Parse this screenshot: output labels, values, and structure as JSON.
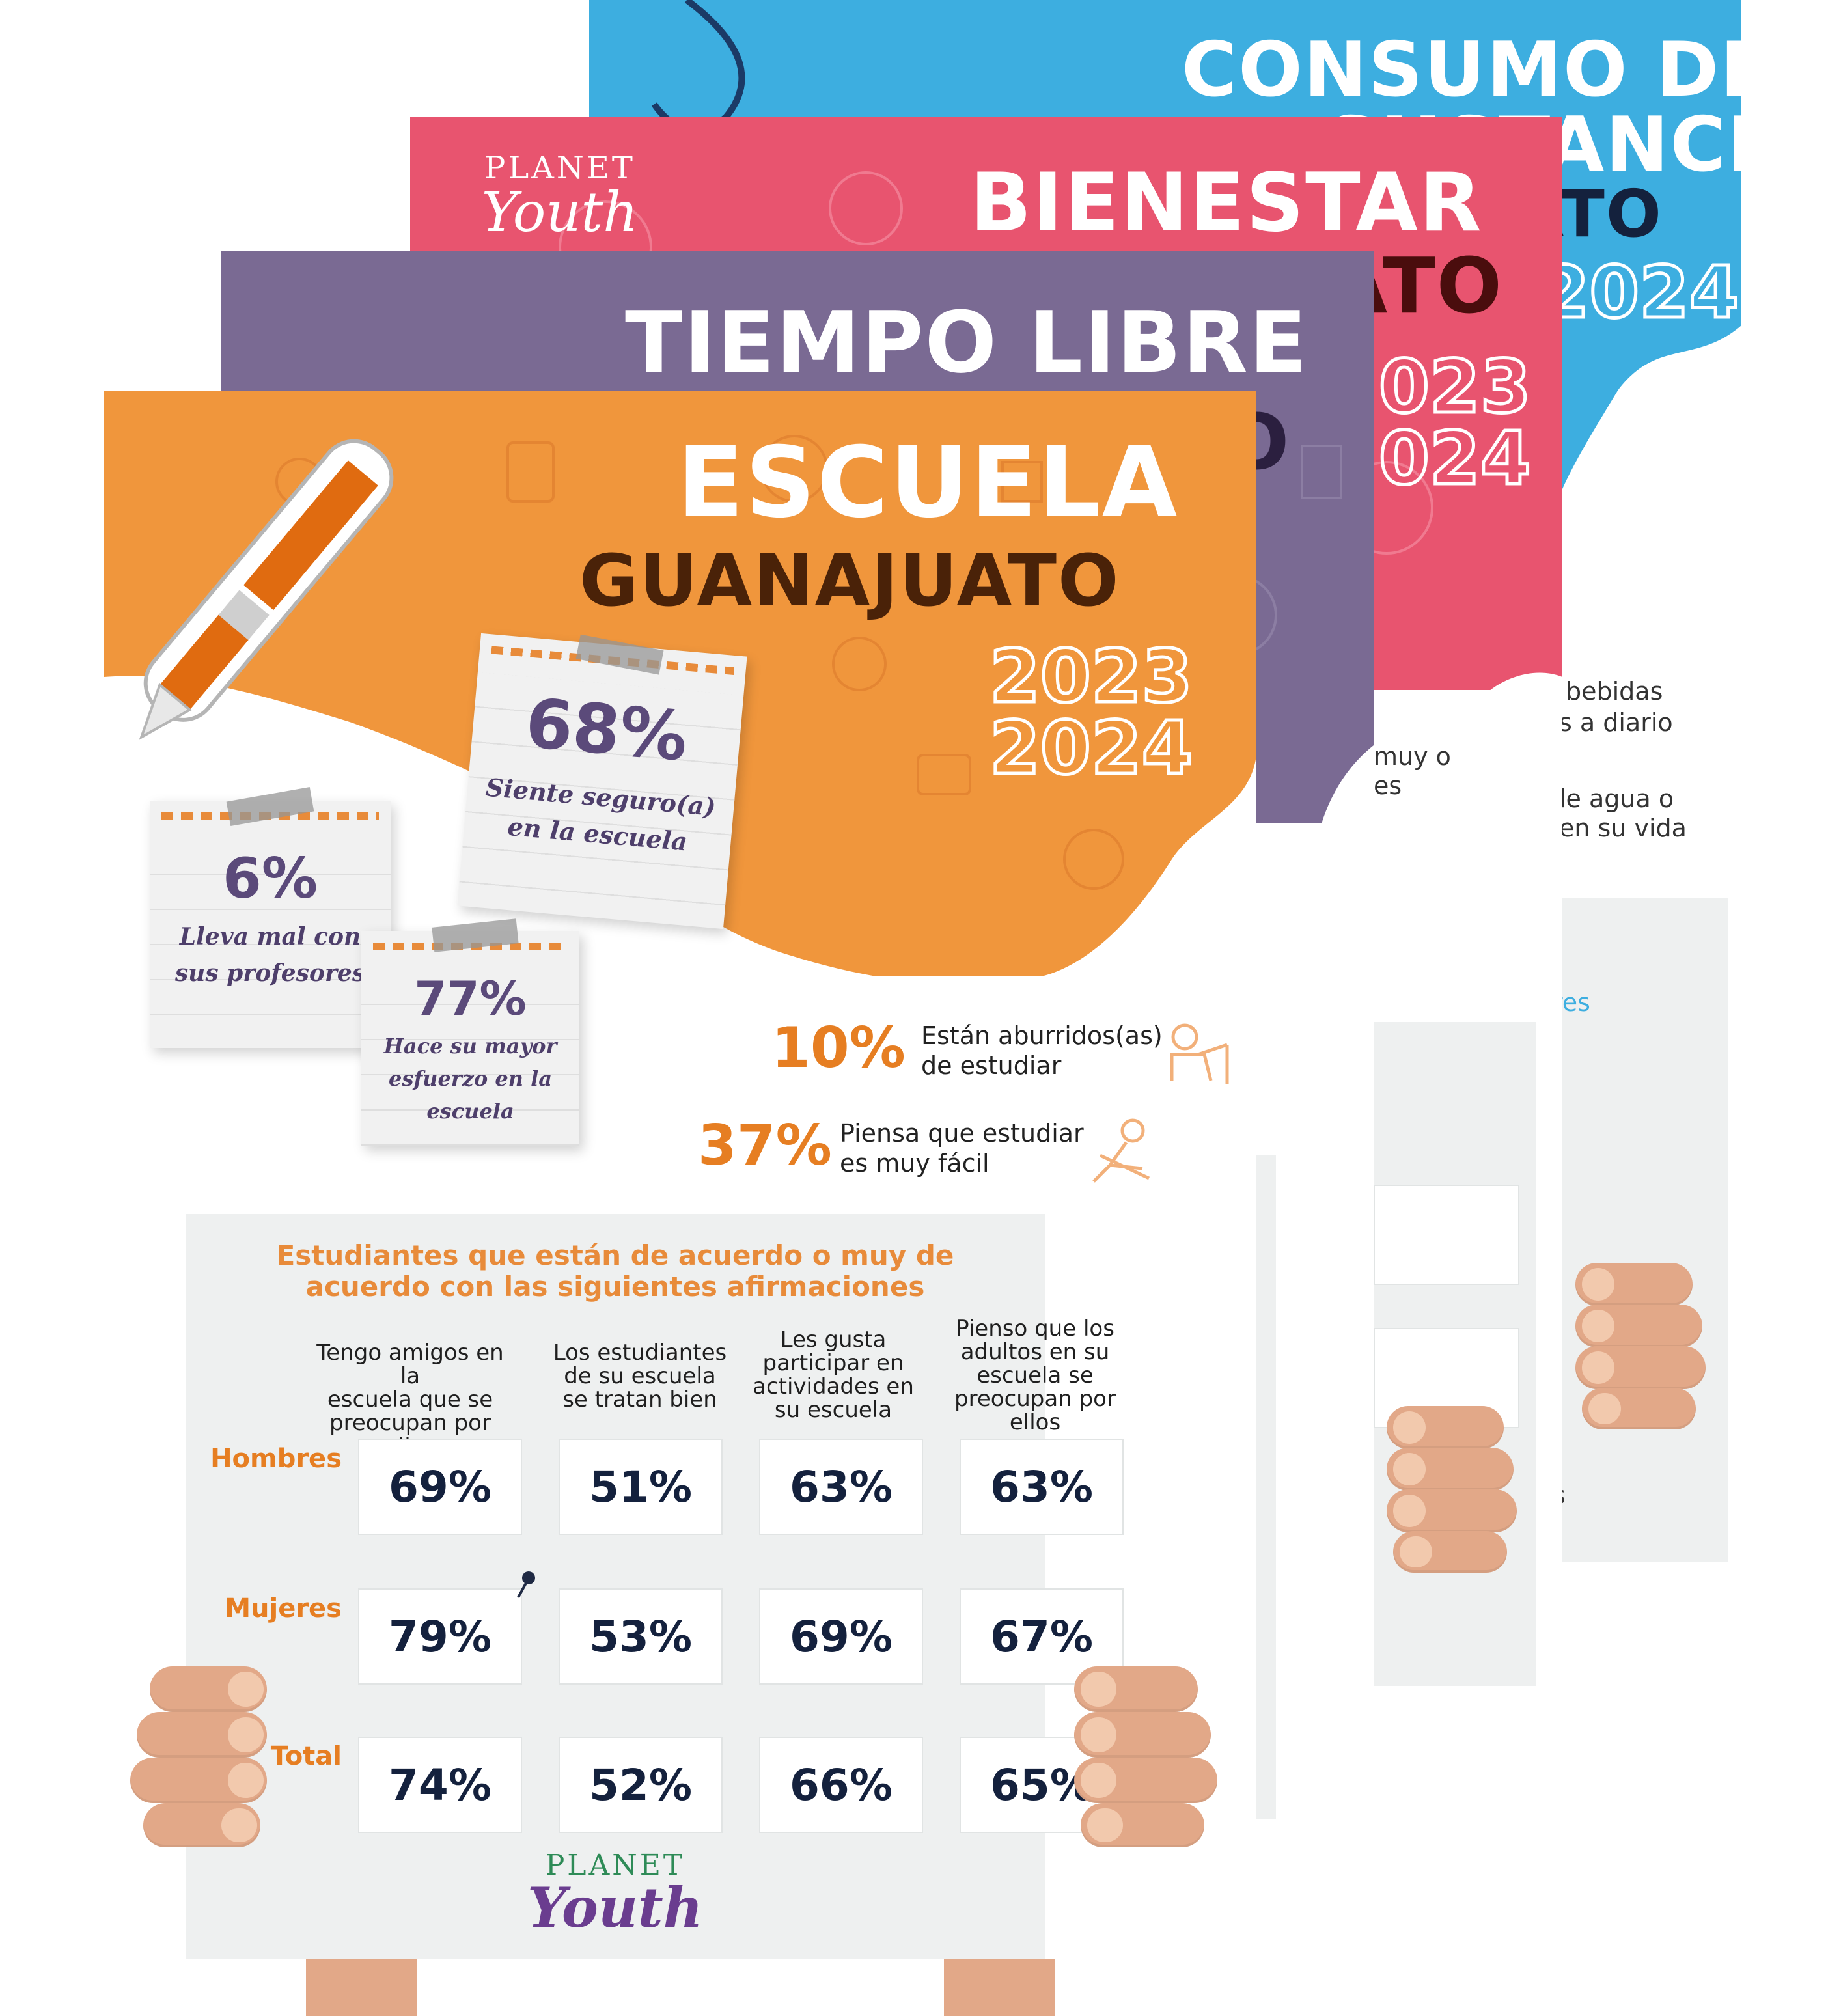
{
  "posters": {
    "consumo": {
      "title_line1": "CONSUMO DE",
      "title_line2": "SUSTANCIAS",
      "title_line3": "ATO",
      "year": "2024",
      "snippets": [
        "bebidas",
        "s a diario",
        "le agua o",
        "en su vida",
        "res",
        "a",
        "s"
      ]
    },
    "bienestar": {
      "brand_top": "PLANET",
      "brand_bottom": "Youth",
      "title": "BIENESTAR",
      "sub": "ATO",
      "year1": "2023",
      "year2": "2024",
      "snippets": [
        "muy o",
        "es"
      ]
    },
    "tiempo": {
      "title": "TIEMPO LIBRE",
      "sub": "O"
    },
    "escuela": {
      "title": "ESCUELA",
      "subtitle": "GUANAJUATO",
      "year1": "2023",
      "year2": "2024"
    }
  },
  "notes": [
    {
      "id": "seguro",
      "pct": "68%",
      "text_l1": "Siente seguro(a)",
      "text_l2": "en la escuela"
    },
    {
      "id": "profesores",
      "pct": "6%",
      "text_l1": "Lleva mal con",
      "text_l2": "sus profesores"
    },
    {
      "id": "esfuerzo",
      "pct": "77%",
      "text_l1": "Hace su mayor",
      "text_l2": "esfuerzo en la",
      "text_l3": "escuela"
    }
  ],
  "stats": [
    {
      "pct": "10%",
      "text_l1": "Están aburridos(as)",
      "text_l2": "de estudiar"
    },
    {
      "pct": "37%",
      "text_l1": "Piensa que estudiar",
      "text_l2": "es muy fácil"
    }
  ],
  "table": {
    "title_l1": "Estudiantes que están de acuerdo o muy de",
    "title_l2": "acuerdo con las siguientes afirmaciones",
    "columns": [
      [
        "Tengo amigos en la",
        "escuela que se",
        "preocupan por ellos"
      ],
      [
        "Los estudiantes",
        "de su escuela",
        "se tratan bien"
      ],
      [
        "Les gusta",
        "participar en",
        "actividades en",
        "su escuela"
      ],
      [
        "Pienso que los",
        "adultos en su",
        "escuela se",
        "preocupan por",
        "ellos"
      ]
    ],
    "rows": [
      {
        "label": "Hombres",
        "values": [
          "69%",
          "51%",
          "63%",
          "63%"
        ]
      },
      {
        "label": "Mujeres",
        "values": [
          "79%",
          "53%",
          "69%",
          "67%"
        ]
      },
      {
        "label": "Total",
        "values": [
          "74%",
          "52%",
          "66%",
          "65%"
        ]
      }
    ]
  },
  "footer_brand": {
    "top": "PLANET",
    "bottom": "Youth"
  },
  "colors": {
    "orange": "#f0963c",
    "purple": "#7a6a93",
    "pink": "#e8546f",
    "blue": "#3daee0",
    "navy": "#14213d",
    "brown": "#4a2208"
  }
}
